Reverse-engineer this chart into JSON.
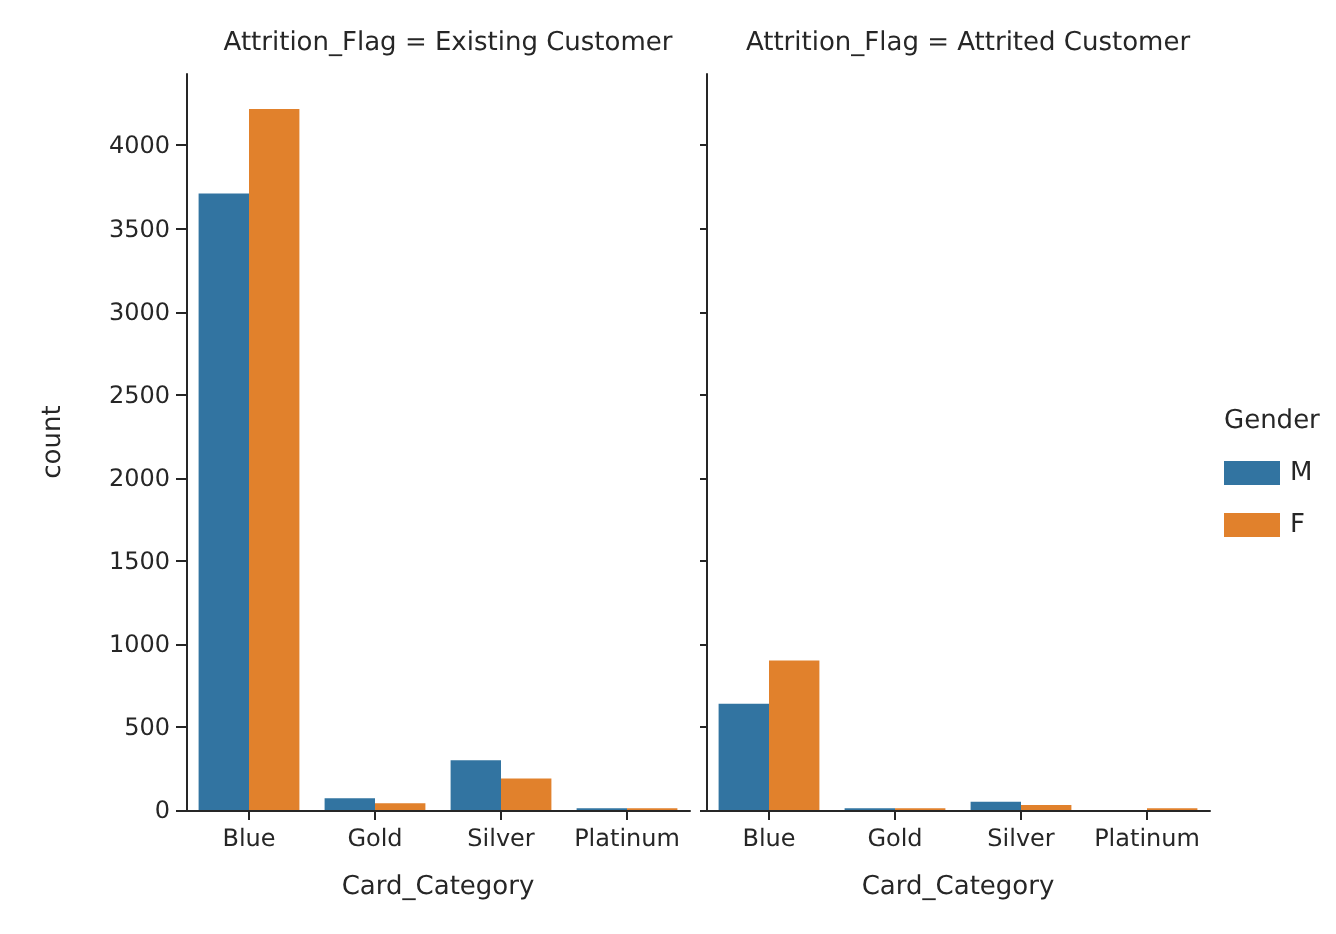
{
  "chart_data": [
    {
      "type": "bar",
      "title": "Attrition_Flag = Existing Customer",
      "xlabel": "Card_Category",
      "ylabel": "count",
      "categories": [
        "Blue",
        "Gold",
        "Silver",
        "Platinum"
      ],
      "series": [
        {
          "color": "#3274a1",
          "values": [
            3710,
            70,
            300,
            10
          ]
        },
        {
          "color": "#e1812c",
          "values": [
            4220,
            40,
            190,
            10
          ]
        }
      ],
      "ylim": [
        0,
        4430
      ],
      "yticks": [
        0,
        500,
        1000,
        1500,
        2000,
        2500,
        3000,
        3500,
        4000
      ],
      "grid": false,
      "legend": false
    },
    {
      "type": "bar",
      "title": "Attrition_Flag = Attrited Customer",
      "xlabel": "Card_Category",
      "categories": [
        "Blue",
        "Gold",
        "Silver",
        "Platinum"
      ],
      "series": [
        {
          "name": "M",
          "color": "#3274a1",
          "values": [
            640,
            10,
            50,
            0
          ]
        },
        {
          "name": "F",
          "color": "#e1812c",
          "values": [
            900,
            10,
            30,
            10
          ]
        }
      ],
      "ylim": [
        0,
        4430
      ],
      "yticks": [
        0,
        500,
        1000,
        1500,
        2000,
        2500,
        3000,
        3500,
        4000
      ],
      "tick_labels": "x",
      "grid": false,
      "legend": "right",
      "legend_title": "Gender"
    }
  ]
}
